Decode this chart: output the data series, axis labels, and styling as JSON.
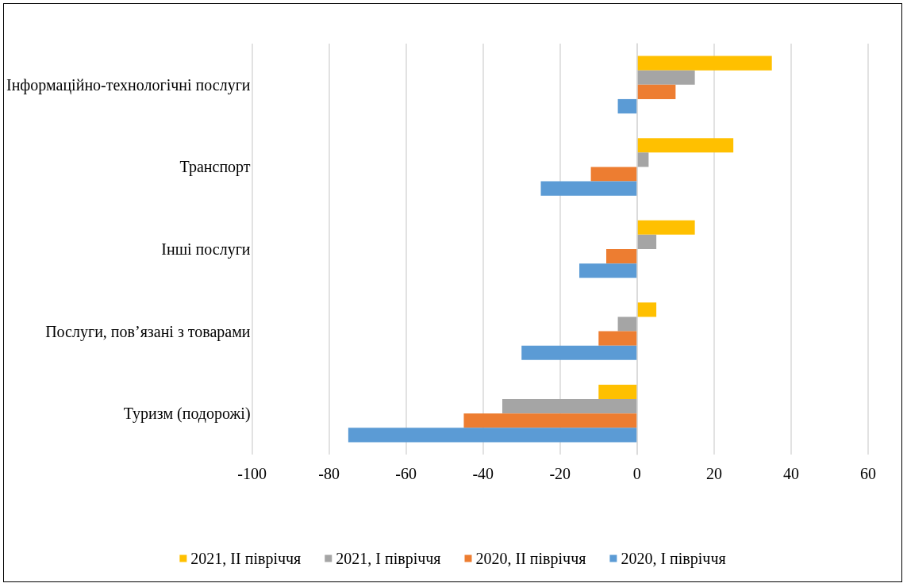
{
  "chart_data": {
    "type": "bar",
    "orientation": "horizontal",
    "categories": [
      "Інформаційно-технологічні послуги",
      "Транспорт",
      "Інші послуги",
      "Послуги, пов’язані з товарами",
      "Туризм (подорожі)"
    ],
    "series": [
      {
        "name": "2021, ІІ півріччя",
        "color": "#ffc000",
        "values": [
          35,
          25,
          15,
          5,
          -10
        ]
      },
      {
        "name": "2021, І півріччя",
        "color": "#a5a5a5",
        "values": [
          15,
          3,
          5,
          -5,
          -35
        ]
      },
      {
        "name": "2020, ІІ півріччя",
        "color": "#ed7d31",
        "values": [
          10,
          -12,
          -8,
          -10,
          -45
        ]
      },
      {
        "name": "2020, І півріччя",
        "color": "#5b9bd5",
        "values": [
          -5,
          -25,
          -15,
          -30,
          -75
        ]
      }
    ],
    "xlim": [
      -100,
      60
    ],
    "xticks": [
      -100,
      -80,
      -60,
      -40,
      -20,
      0,
      20,
      40,
      60
    ],
    "grid": "x",
    "legend": "bottom"
  }
}
